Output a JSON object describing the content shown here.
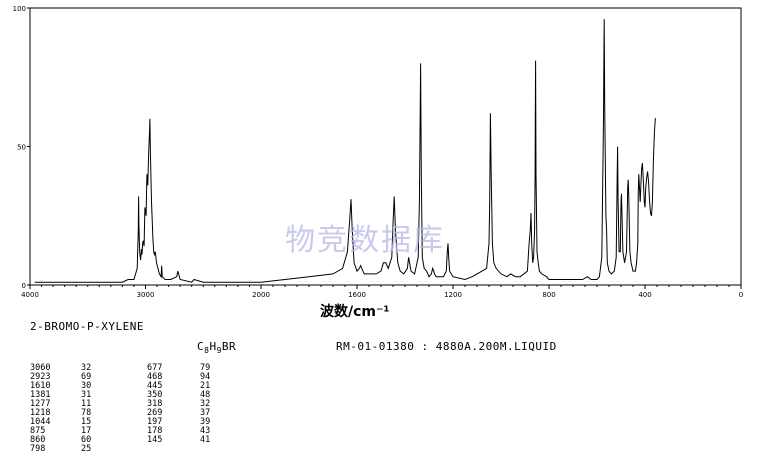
{
  "chart_data": {
    "type": "line",
    "title": "",
    "xlabel": "波数/cm⁻¹",
    "ylabel": "",
    "xlim": [
      4000,
      0
    ],
    "ylim": [
      0,
      100
    ],
    "x_ticks": [
      "4000",
      "3000",
      "2000",
      "1600",
      "1200",
      "800",
      "400",
      "0"
    ],
    "y_ticks": [
      "100",
      "50",
      "0"
    ],
    "grid": false,
    "series": [
      {
        "points": [
          [
            3960,
            1
          ],
          [
            3200,
            1
          ],
          [
            3150,
            2
          ],
          [
            3100,
            2
          ],
          [
            3072,
            6
          ],
          [
            3062,
            20
          ],
          [
            3060,
            32
          ],
          [
            3057,
            22
          ],
          [
            3050,
            12
          ],
          [
            3042,
            9
          ],
          [
            3035,
            13
          ],
          [
            3030,
            11
          ],
          [
            3025,
            15
          ],
          [
            3020,
            16
          ],
          [
            3012,
            14
          ],
          [
            3005,
            28
          ],
          [
            2995,
            25
          ],
          [
            2988,
            40
          ],
          [
            2980,
            36
          ],
          [
            2972,
            48
          ],
          [
            2965,
            55
          ],
          [
            2962,
            60
          ],
          [
            2958,
            48
          ],
          [
            2948,
            30
          ],
          [
            2935,
            16
          ],
          [
            2928,
            12
          ],
          [
            2923,
            11
          ],
          [
            2915,
            12
          ],
          [
            2905,
            8
          ],
          [
            2880,
            4
          ],
          [
            2865,
            3
          ],
          [
            2860,
            7
          ],
          [
            2855,
            3
          ],
          [
            2830,
            2
          ],
          [
            2780,
            2
          ],
          [
            2730,
            3
          ],
          [
            2720,
            5
          ],
          [
            2700,
            2
          ],
          [
            2600,
            1
          ],
          [
            2580,
            2
          ],
          [
            2500,
            1
          ],
          [
            2000,
            1
          ],
          [
            1900,
            2
          ],
          [
            1800,
            3
          ],
          [
            1700,
            4
          ],
          [
            1660,
            6
          ],
          [
            1640,
            12
          ],
          [
            1630,
            24
          ],
          [
            1625,
            31
          ],
          [
            1620,
            20
          ],
          [
            1612,
            8
          ],
          [
            1600,
            5
          ],
          [
            1590,
            6
          ],
          [
            1585,
            7
          ],
          [
            1570,
            4
          ],
          [
            1520,
            4
          ],
          [
            1500,
            5
          ],
          [
            1490,
            8
          ],
          [
            1480,
            8
          ],
          [
            1470,
            6
          ],
          [
            1455,
            10
          ],
          [
            1450,
            22
          ],
          [
            1445,
            32
          ],
          [
            1440,
            20
          ],
          [
            1430,
            8
          ],
          [
            1420,
            5
          ],
          [
            1405,
            4
          ],
          [
            1390,
            6
          ],
          [
            1385,
            10
          ],
          [
            1381,
            8
          ],
          [
            1375,
            5
          ],
          [
            1360,
            4
          ],
          [
            1345,
            10
          ],
          [
            1340,
            30
          ],
          [
            1337,
            58
          ],
          [
            1335,
            80
          ],
          [
            1332,
            40
          ],
          [
            1328,
            10
          ],
          [
            1320,
            6
          ],
          [
            1310,
            5
          ],
          [
            1300,
            3
          ],
          [
            1290,
            4
          ],
          [
            1285,
            6
          ],
          [
            1280,
            5
          ],
          [
            1277,
            4
          ],
          [
            1270,
            3
          ],
          [
            1240,
            3
          ],
          [
            1228,
            5
          ],
          [
            1225,
            10
          ],
          [
            1223,
            13
          ],
          [
            1221,
            15
          ],
          [
            1218,
            10
          ],
          [
            1214,
            5
          ],
          [
            1200,
            3
          ],
          [
            1150,
            2
          ],
          [
            1120,
            3
          ],
          [
            1100,
            4
          ],
          [
            1060,
            6
          ],
          [
            1050,
            15
          ],
          [
            1047,
            30
          ],
          [
            1044,
            62
          ],
          [
            1041,
            40
          ],
          [
            1036,
            15
          ],
          [
            1030,
            8
          ],
          [
            1020,
            6
          ],
          [
            1000,
            4
          ],
          [
            975,
            3
          ],
          [
            960,
            4
          ],
          [
            940,
            3
          ],
          [
            920,
            3
          ],
          [
            890,
            5
          ],
          [
            883,
            15
          ],
          [
            878,
            20
          ],
          [
            875,
            26
          ],
          [
            872,
            15
          ],
          [
            868,
            8
          ],
          [
            864,
            10
          ],
          [
            860,
            20
          ],
          [
            858,
            40
          ],
          [
            857,
            60
          ],
          [
            856,
            81
          ],
          [
            854,
            40
          ],
          [
            850,
            12
          ],
          [
            845,
            8
          ],
          [
            840,
            5
          ],
          [
            830,
            4
          ],
          [
            810,
            3
          ],
          [
            800,
            2
          ],
          [
            790,
            2
          ],
          [
            760,
            2
          ],
          [
            720,
            2
          ],
          [
            700,
            2
          ],
          [
            680,
            2
          ],
          [
            660,
            2
          ],
          [
            640,
            3
          ],
          [
            625,
            2
          ],
          [
            600,
            2
          ],
          [
            590,
            3
          ],
          [
            580,
            10
          ],
          [
            573,
            60
          ],
          [
            571,
            88
          ],
          [
            570,
            96
          ],
          [
            568,
            65
          ],
          [
            563,
            25
          ],
          [
            560,
            20
          ],
          [
            557,
            8
          ],
          [
            550,
            5
          ],
          [
            540,
            4
          ],
          [
            528,
            5
          ],
          [
            520,
            10
          ],
          [
            516,
            40
          ],
          [
            514,
            50
          ],
          [
            512,
            30
          ],
          [
            508,
            12
          ],
          [
            503,
            12
          ],
          [
            500,
            30
          ],
          [
            498,
            33
          ],
          [
            496,
            25
          ],
          [
            492,
            12
          ],
          [
            485,
            8
          ],
          [
            477,
            12
          ],
          [
            472,
            35
          ],
          [
            470,
            38
          ],
          [
            468,
            33
          ],
          [
            463,
            12
          ],
          [
            458,
            8
          ],
          [
            450,
            5
          ],
          [
            440,
            5
          ],
          [
            435,
            8
          ],
          [
            430,
            15
          ],
          [
            428,
            34
          ],
          [
            426,
            40
          ],
          [
            424,
            37
          ],
          [
            420,
            30
          ],
          [
            417,
            36
          ],
          [
            414,
            42
          ],
          [
            411,
            44
          ],
          [
            407,
            38
          ],
          [
            403,
            30
          ],
          [
            400,
            28
          ],
          [
            397,
            35
          ],
          [
            393,
            39
          ],
          [
            389,
            41
          ],
          [
            385,
            37
          ],
          [
            381,
            30
          ],
          [
            377,
            26
          ],
          [
            373,
            25
          ],
          [
            369,
            30
          ],
          [
            365,
            45
          ],
          [
            361,
            55
          ],
          [
            357,
            60
          ],
          [
            354,
            60
          ]
        ]
      }
    ],
    "peak_table": [
      {
        "wavenumber": "3060",
        "intensity": "32"
      },
      {
        "wavenumber": "2923",
        "intensity": "69"
      },
      {
        "wavenumber": "1610",
        "intensity": "30"
      },
      {
        "wavenumber": "1381",
        "intensity": "31"
      },
      {
        "wavenumber": "1277",
        "intensity": "11"
      },
      {
        "wavenumber": "1218",
        "intensity": "78"
      },
      {
        "wavenumber": "1044",
        "intensity": "15"
      },
      {
        "wavenumber": "875",
        "intensity": "17"
      },
      {
        "wavenumber": "860",
        "intensity": "60"
      },
      {
        "wavenumber": "798",
        "intensity": "25"
      },
      {
        "wavenumber": "677",
        "intensity": "79"
      },
      {
        "wavenumber": "468",
        "intensity": "94"
      },
      {
        "wavenumber": "445",
        "intensity": "21"
      },
      {
        "wavenumber": "350",
        "intensity": "48"
      },
      {
        "wavenumber": "318",
        "intensity": "32"
      },
      {
        "wavenumber": "269",
        "intensity": "37"
      },
      {
        "wavenumber": "197",
        "intensity": "39"
      },
      {
        "wavenumber": "178",
        "intensity": "43"
      },
      {
        "wavenumber": "145",
        "intensity": "41"
      }
    ]
  },
  "compound_name": "2-BROMO-P-XYLENE",
  "formula": {
    "c": "C",
    "c_sub": "8",
    "h": "H",
    "h_sub": "9",
    "rest": "BR"
  },
  "reference": "RM-01-01380 : 4880A.200M.LIQUID",
  "watermark": "物竞数据库"
}
